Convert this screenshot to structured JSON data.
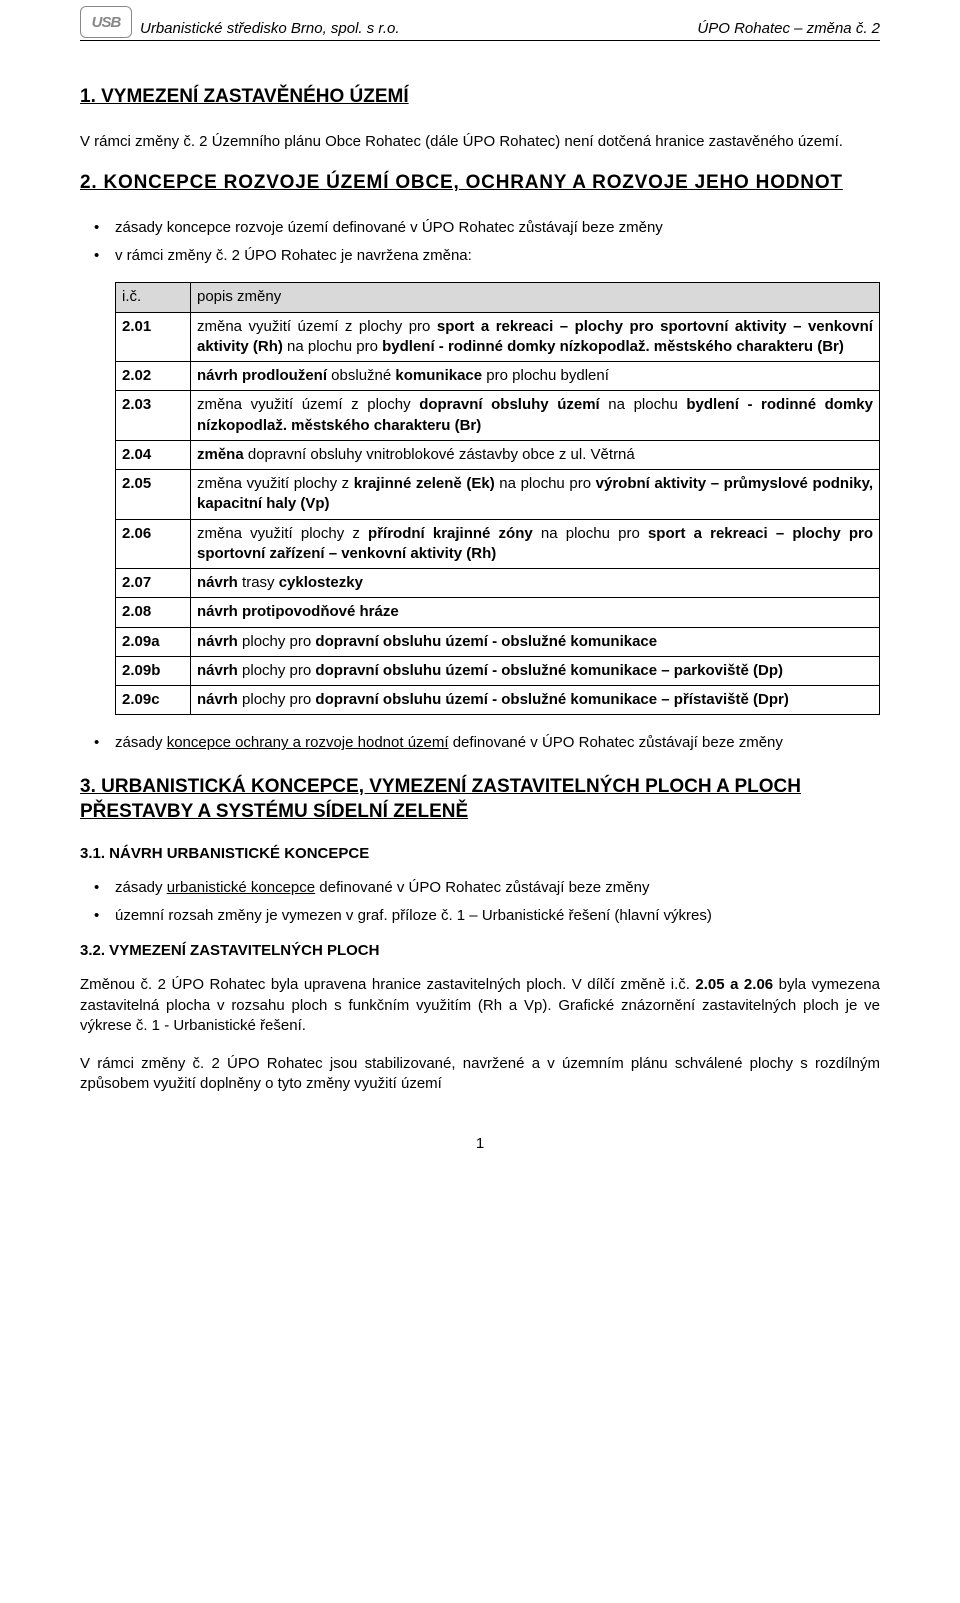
{
  "header": {
    "logo_text": "USB",
    "left": "Urbanistické středisko Brno, spol. s r.o.",
    "right": "ÚPO Rohatec – změna č. 2"
  },
  "section1": {
    "heading": "1.   VYMEZENÍ ZASTAVĚNÉHO ÚZEMÍ",
    "para": "V rámci změny č. 2 Územního plánu Obce Rohatec (dále ÚPO Rohatec) není dotčená hranice zastavěného území."
  },
  "section2": {
    "heading": "2.  KONCEPCE  ROZVOJE  ÚZEMÍ  OBCE,  OCHRANY  A  ROZVOJE  JEHO HODNOT",
    "bullets_top": [
      "zásady koncepce rozvoje území definované v ÚPO Rohatec zůstávají beze změny",
      "v rámci změny č. 2 ÚPO Rohatec je navržena změna:"
    ],
    "table": {
      "header": {
        "col1": "i.č.",
        "col2": "popis změny"
      },
      "rows": [
        {
          "id": "2.01",
          "html": "změna využití území z plochy pro <b>sport a rekreaci – plochy pro sportovní aktivity – venkovní aktivity (Rh)</b> na plochu pro <b>bydlení - rodinné domky nízkopodlaž. městského charakteru (Br)</b>"
        },
        {
          "id": "2.02",
          "html": "<b>návrh prodloužení</b> obslužné <b>komunikace</b> pro plochu bydlení"
        },
        {
          "id": "2.03",
          "html": "změna využití území z plochy <b>dopravní obsluhy území</b> na plochu <b>bydlení - rodinné domky nízkopodlaž. městského charakteru (Br)</b>"
        },
        {
          "id": "2.04",
          "html": "<b>změna</b> dopravní obsluhy vnitroblokové zástavby obce z ul. Větrná"
        },
        {
          "id": "2.05",
          "html": "změna využití plochy z <b>krajinné zeleně (Ek)</b> na plochu pro <b>výrobní aktivity – průmyslové podniky, kapacitní haly (Vp)</b>"
        },
        {
          "id": "2.06",
          "html": "změna využití plochy z <b>přírodní krajinné zóny</b> na plochu pro <b>sport a rekreaci – plochy pro sportovní zařízení – venkovní aktivity (Rh)</b>"
        },
        {
          "id": "2.07",
          "html": "<b>návrh</b> trasy <b>cyklostezky</b>"
        },
        {
          "id": "2.08",
          "html": "<b>návrh protipovodňové hráze</b>"
        },
        {
          "id": "2.09a",
          "html": "<b>návrh</b> plochy pro <b>dopravní obsluhu území - obslužné komunikace</b>"
        },
        {
          "id": "2.09b",
          "html": "<b>návrh</b> plochy pro <b>dopravní obsluhu území - obslužné komunikace – parkoviště (Dp)</b>"
        },
        {
          "id": "2.09c",
          "html": "<b>návrh</b> plochy pro <b>dopravní obsluhu území - obslužné komunikace – přístaviště (Dpr)</b>"
        }
      ]
    },
    "bullets_bottom": [
      "zásady koncepce ochrany a rozvoje hodnot území definované v ÚPO Rohatec zůstávají beze změny"
    ]
  },
  "section3": {
    "heading": "3.  URBANISTICKÁ  KONCEPCE,  VYMEZENÍ  ZASTAVITELNÝCH  PLOCH  A PLOCH PŘESTAVBY A SYSTÉMU SÍDELNÍ ZELENĚ",
    "sub31": {
      "heading": "3.1. NÁVRH URBANISTICKÉ KONCEPCE",
      "bullets": [
        "zásady urbanistické koncepce definované v ÚPO Rohatec zůstávají beze změny",
        "územní rozsah změny je vymezen v graf. příloze č. 1 – Urbanistické řešení (hlavní výkres)"
      ]
    },
    "sub32": {
      "heading": "3.2. VYMEZENÍ ZASTAVITELNÝCH PLOCH",
      "para1_html": "Změnou č. 2 ÚPO Rohatec byla upravena hranice zastavitelných ploch. V dílčí změně i.č. <b>2.05 a 2.06</b> byla vymezena zastavitelná plocha v rozsahu ploch s funkčním využitím (Rh a Vp). Grafické znázornění zastavitelných ploch je ve výkrese č. 1 - Urbanistické řešení.",
      "para2": "V rámci změny č. 2 ÚPO Rohatec jsou stabilizované, navržené a v územním plánu schválené plochy s rozdílným způsobem využití doplněny o tyto změny využití území"
    }
  },
  "page_number": "1"
}
